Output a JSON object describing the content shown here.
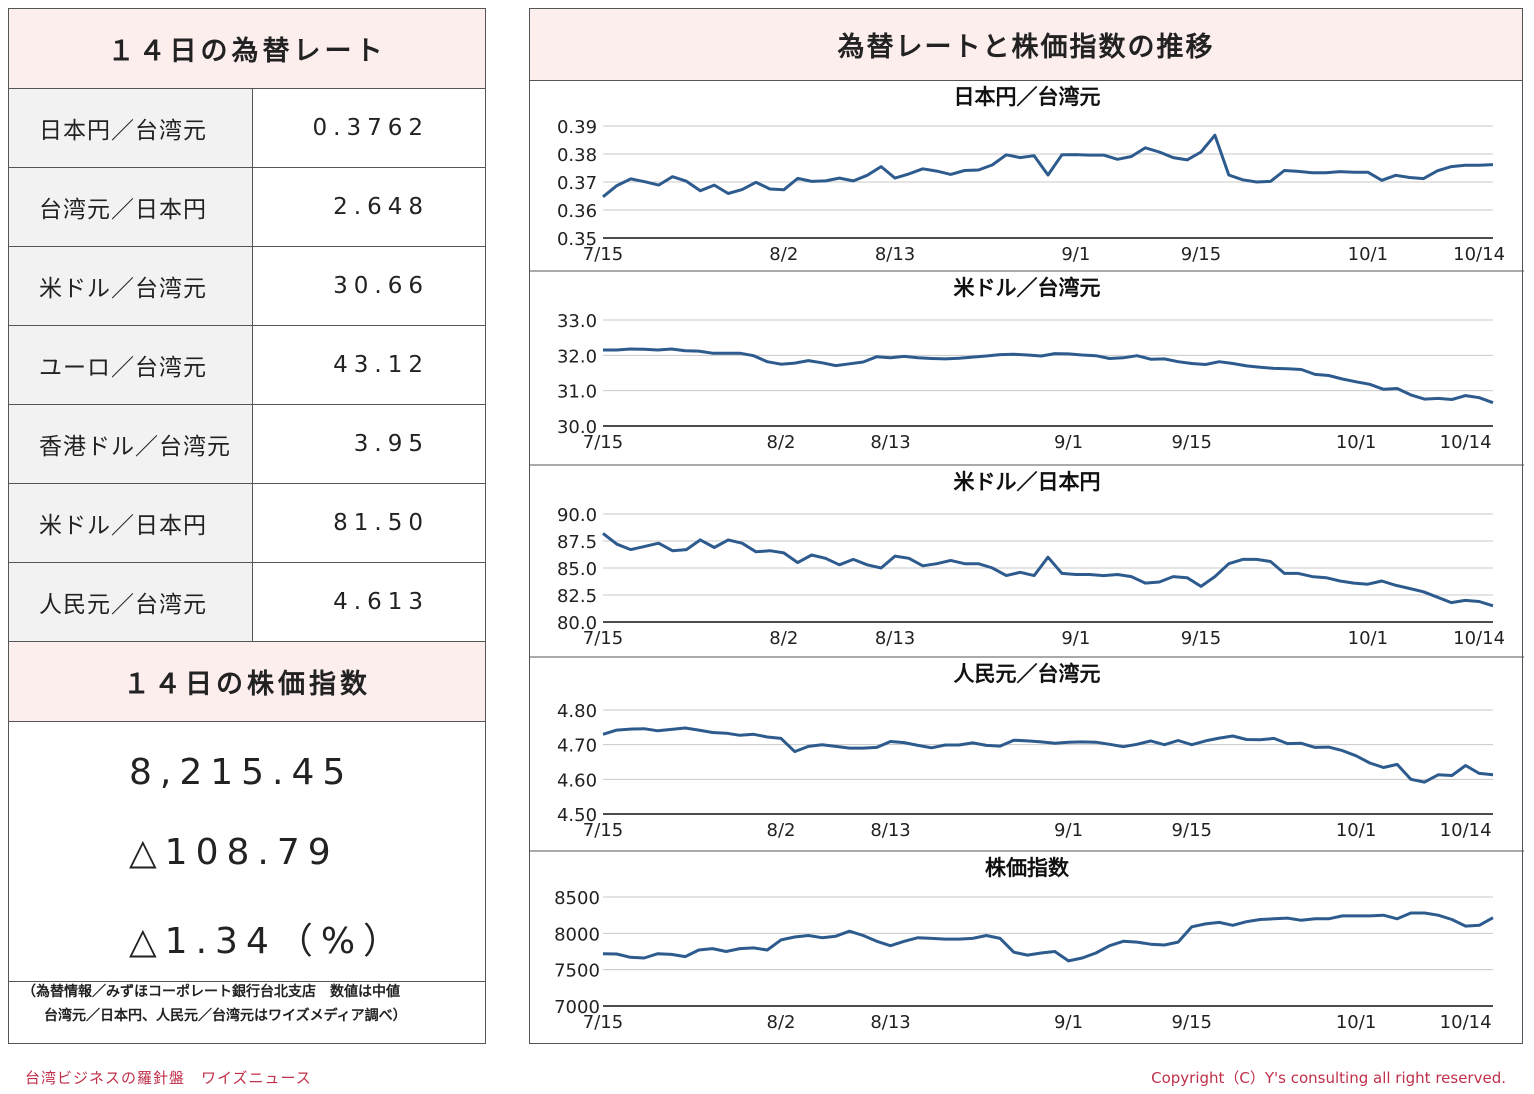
{
  "left": {
    "rates_title": "１４日の為替レート",
    "rates": [
      {
        "name": "日本円／台湾元",
        "value": "0.3762"
      },
      {
        "name": "台湾元／日本円",
        "value": "2.648"
      },
      {
        "name": "米ドル／台湾元",
        "value": "30.66"
      },
      {
        "name": "ユーロ／台湾元",
        "value": "43.12"
      },
      {
        "name": "香港ドル／台湾元",
        "value": "3.95"
      },
      {
        "name": "米ドル／日本円",
        "value": "81.50"
      },
      {
        "name": "人民元／台湾元",
        "value": "4.613"
      }
    ],
    "stock_title": "１４日の株価指数",
    "stock_value": "8,215.45",
    "stock_change": "△108.79",
    "stock_change_pct": "△1.34（%）",
    "note_line1": "（為替情報／みずほコーポレート銀行台北支店　数値は中値",
    "note_line2": "台湾元／日本円、人民元／台湾元はワイズメディア調べ）"
  },
  "right": {
    "title": "為替レートと株価指数の推移"
  },
  "footer": {
    "left": "台湾ビジネスの羅針盤　ワイズニュース",
    "right": "Copyright（C）Y's consulting all right reserved."
  },
  "colors": {
    "line": "#2e5b8e",
    "header_bg": "#fdeeee",
    "footer_text": "#c0304a"
  },
  "chart_data": [
    {
      "type": "line",
      "title": "日本円／台湾元",
      "ylim": [
        0.35,
        0.39
      ],
      "yticks": [
        "0.39",
        "0.38",
        "0.37",
        "0.36",
        "0.35"
      ],
      "xtick_labels": [
        "7/15",
        "8/2",
        "8/13",
        "9/1",
        "9/15",
        "10/1",
        "10/14"
      ],
      "xtick_index": [
        0,
        13,
        21,
        34,
        43,
        55,
        63
      ],
      "values": [
        0.3647,
        0.3687,
        0.3711,
        0.3701,
        0.3689,
        0.3719,
        0.3703,
        0.3669,
        0.3689,
        0.3659,
        0.3673,
        0.3699,
        0.3675,
        0.3672,
        0.3713,
        0.3702,
        0.3704,
        0.3714,
        0.3704,
        0.3724,
        0.3755,
        0.3714,
        0.3729,
        0.3747,
        0.3739,
        0.3727,
        0.3741,
        0.3743,
        0.3761,
        0.3797,
        0.3787,
        0.3794,
        0.3725,
        0.3797,
        0.3798,
        0.3796,
        0.3796,
        0.3781,
        0.3791,
        0.3822,
        0.3807,
        0.3787,
        0.3779,
        0.3807,
        0.3867,
        0.3725,
        0.3708,
        0.37,
        0.3702,
        0.3741,
        0.3738,
        0.3733,
        0.3733,
        0.3737,
        0.3735,
        0.3735,
        0.3706,
        0.3724,
        0.3716,
        0.3712,
        0.374,
        0.3755,
        0.376,
        0.376,
        0.3762
      ]
    },
    {
      "type": "line",
      "title": "米ドル／台湾元",
      "ylim": [
        30.0,
        33.0
      ],
      "yticks": [
        "33.0",
        "32.0",
        "31.0",
        "30.0"
      ],
      "xtick_labels": [
        "7/15",
        "8/2",
        "8/13",
        "9/1",
        "9/15",
        "10/1",
        "10/14"
      ],
      "xtick_index": [
        0,
        13,
        21,
        34,
        43,
        55,
        63
      ],
      "values": [
        32.15,
        32.15,
        32.18,
        32.17,
        32.15,
        32.18,
        32.13,
        32.12,
        32.06,
        32.06,
        32.06,
        31.99,
        31.82,
        31.75,
        31.78,
        31.85,
        31.79,
        31.71,
        31.76,
        31.81,
        31.96,
        31.93,
        31.97,
        31.93,
        31.91,
        31.9,
        31.92,
        31.95,
        31.98,
        32.02,
        32.03,
        32.01,
        31.98,
        32.05,
        32.04,
        32.01,
        31.99,
        31.91,
        31.93,
        31.99,
        31.89,
        31.9,
        31.82,
        31.77,
        31.74,
        31.82,
        31.77,
        31.7,
        31.66,
        31.63,
        31.62,
        31.6,
        31.46,
        31.43,
        31.33,
        31.25,
        31.18,
        31.04,
        31.06,
        30.88,
        30.76,
        30.78,
        30.75,
        30.86,
        30.8,
        30.66
      ]
    },
    {
      "type": "line",
      "title": "米ドル／日本円",
      "ylim": [
        80.0,
        90.0
      ],
      "yticks": [
        "90.0",
        "87.5",
        "85.0",
        "82.5",
        "80.0"
      ],
      "xtick_labels": [
        "7/15",
        "8/2",
        "8/13",
        "9/1",
        "9/15",
        "10/1",
        "10/14"
      ],
      "xtick_index": [
        0,
        13,
        21,
        34,
        43,
        55,
        63
      ],
      "values": [
        88.2,
        87.2,
        86.7,
        87.0,
        87.3,
        86.6,
        86.7,
        87.6,
        86.9,
        87.6,
        87.3,
        86.5,
        86.6,
        86.4,
        85.5,
        86.2,
        85.9,
        85.3,
        85.8,
        85.3,
        85.0,
        86.1,
        85.9,
        85.2,
        85.4,
        85.7,
        85.4,
        85.4,
        85.0,
        84.3,
        84.6,
        84.3,
        86.0,
        84.5,
        84.4,
        84.4,
        84.3,
        84.4,
        84.2,
        83.6,
        83.7,
        84.2,
        84.1,
        83.3,
        84.2,
        85.4,
        85.8,
        85.8,
        85.6,
        84.5,
        84.5,
        84.2,
        84.1,
        83.8,
        83.6,
        83.5,
        83.8,
        83.4,
        83.1,
        82.8,
        82.3,
        81.8,
        82.0,
        81.9,
        81.5
      ]
    },
    {
      "type": "line",
      "title": "人民元／台湾元",
      "ylim": [
        4.5,
        4.8
      ],
      "yticks": [
        "4.80",
        "4.70",
        "4.60",
        "4.50"
      ],
      "xtick_labels": [
        "7/15",
        "8/2",
        "8/13",
        "9/1",
        "9/15",
        "10/1",
        "10/14"
      ],
      "xtick_index": [
        0,
        13,
        21,
        34,
        43,
        55,
        63
      ],
      "values": [
        4.73,
        4.742,
        4.745,
        4.746,
        4.74,
        4.744,
        4.748,
        4.742,
        4.735,
        4.733,
        4.727,
        4.73,
        4.722,
        4.718,
        4.68,
        4.695,
        4.7,
        4.695,
        4.69,
        4.69,
        4.692,
        4.709,
        4.706,
        4.698,
        4.691,
        4.699,
        4.699,
        4.705,
        4.698,
        4.696,
        4.713,
        4.711,
        4.708,
        4.704,
        4.707,
        4.708,
        4.707,
        4.701,
        4.694,
        4.701,
        4.711,
        4.7,
        4.712,
        4.7,
        4.711,
        4.719,
        4.725,
        4.715,
        4.714,
        4.718,
        4.703,
        4.704,
        4.692,
        4.693,
        4.683,
        4.668,
        4.647,
        4.634,
        4.643,
        4.6,
        4.592,
        4.613,
        4.611,
        4.64,
        4.617,
        4.613
      ]
    },
    {
      "type": "line",
      "title": "株価指数",
      "ylim": [
        7000,
        8500
      ],
      "yticks": [
        "8500",
        "8000",
        "7500",
        "7000"
      ],
      "xtick_labels": [
        "7/15",
        "8/2",
        "8/13",
        "9/1",
        "9/15",
        "10/1",
        "10/14"
      ],
      "xtick_index": [
        0,
        13,
        21,
        34,
        43,
        55,
        63
      ],
      "values": [
        7720,
        7715,
        7670,
        7660,
        7720,
        7710,
        7680,
        7770,
        7790,
        7750,
        7790,
        7800,
        7770,
        7910,
        7950,
        7970,
        7940,
        7960,
        8030,
        7970,
        7890,
        7830,
        7890,
        7940,
        7930,
        7920,
        7920,
        7930,
        7970,
        7930,
        7740,
        7700,
        7730,
        7750,
        7620,
        7660,
        7730,
        7830,
        7890,
        7880,
        7850,
        7840,
        7880,
        8090,
        8130,
        8150,
        8110,
        8160,
        8190,
        8200,
        8210,
        8180,
        8200,
        8200,
        8240,
        8240,
        8240,
        8250,
        8200,
        8280,
        8280,
        8250,
        8190,
        8100,
        8110,
        8215
      ]
    }
  ]
}
